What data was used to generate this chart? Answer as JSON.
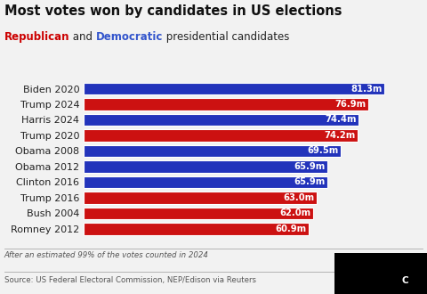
{
  "title": "Most votes won by candidates in US elections",
  "subtitle_parts": [
    {
      "text": "Republican",
      "color": "#cc0000",
      "bold": true
    },
    {
      "text": " and ",
      "color": "#222222",
      "bold": false
    },
    {
      "text": "Democratic",
      "color": "#3355cc",
      "bold": true
    },
    {
      "text": " presidential candidates",
      "color": "#222222",
      "bold": false
    }
  ],
  "candidates": [
    "Biden 2020",
    "Trump 2024",
    "Harris 2024",
    "Trump 2020",
    "Obama 2008",
    "Obama 2012",
    "Clinton 2016",
    "Trump 2016",
    "Bush 2004",
    "Romney 2012"
  ],
  "values": [
    81.3,
    76.9,
    74.4,
    74.2,
    69.5,
    65.9,
    65.9,
    63.0,
    62.0,
    60.9
  ],
  "labels": [
    "81.3m",
    "76.9m",
    "74.4m",
    "74.2m",
    "69.5m",
    "65.9m",
    "65.9m",
    "63.0m",
    "62.0m",
    "60.9m"
  ],
  "colors": [
    "#2233bb",
    "#cc1111",
    "#2233bb",
    "#cc1111",
    "#2233bb",
    "#2233bb",
    "#2233bb",
    "#cc1111",
    "#cc1111",
    "#cc1111"
  ],
  "footnote": "After an estimated 99% of the votes counted in 2024",
  "source": "Source: US Federal Electoral Commission, NEP/Edison via Reuters",
  "background_color": "#f2f2f2",
  "xlim": [
    0,
    90
  ],
  "bar_height": 0.78
}
